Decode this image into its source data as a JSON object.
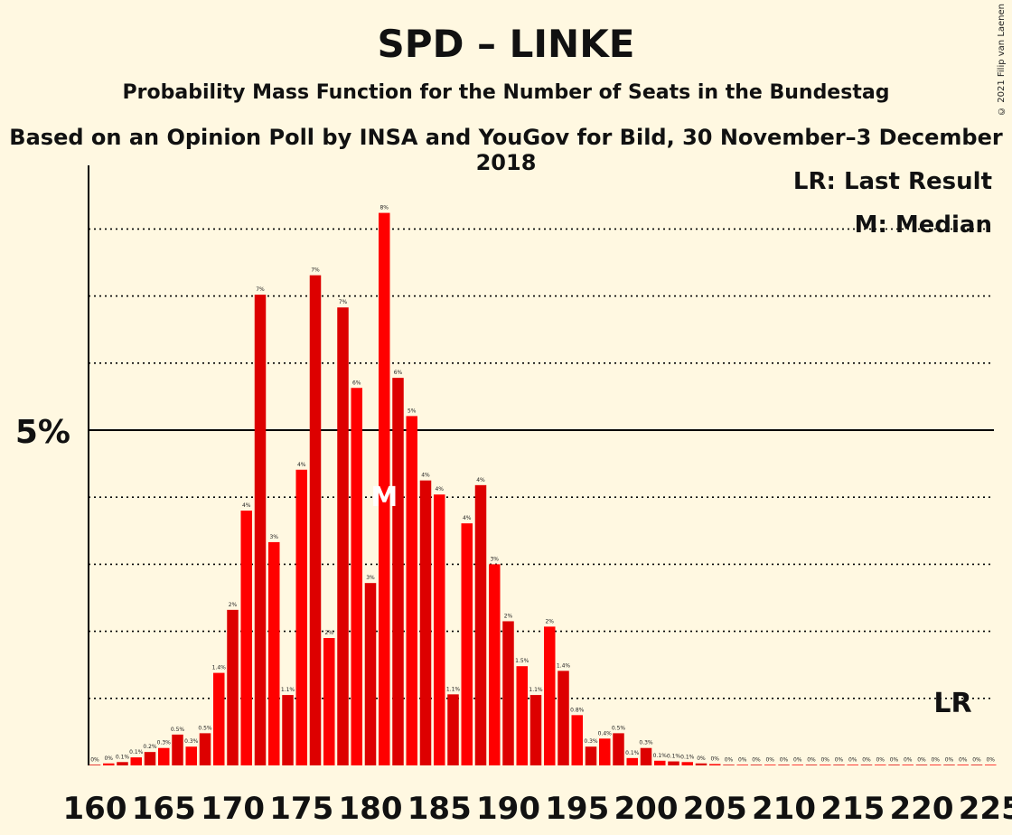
{
  "header": {
    "title": "SPD – LINKE",
    "subtitle1": "Probability Mass Function for the Number of Seats in the Bundestag",
    "subtitle2": "Based on an Opinion Poll by INSA and YouGov for Bild, 30 November–3 December 2018",
    "copyright": "© 2021 Filip van Laenen"
  },
  "legend": {
    "last_result": "LR: Last Result",
    "median": "M: Median"
  },
  "colors": {
    "background": "#fff8e1",
    "bar_dark": "#dd0000",
    "bar_light": "#ff0000",
    "axis": "#000000"
  },
  "chart_data": {
    "type": "bar",
    "x": [
      160,
      161,
      162,
      163,
      164,
      165,
      166,
      167,
      168,
      169,
      170,
      171,
      172,
      173,
      174,
      175,
      176,
      177,
      178,
      179,
      180,
      181,
      182,
      183,
      184,
      185,
      186,
      187,
      188,
      189,
      190,
      191,
      192,
      193,
      194,
      195,
      196,
      197,
      198,
      199,
      200,
      201,
      202,
      203,
      204,
      205,
      206,
      207,
      208,
      209,
      210,
      211,
      212,
      213,
      214,
      215,
      216,
      217,
      218,
      219,
      220,
      221,
      222,
      223,
      224,
      225
    ],
    "values": [
      0.01,
      0.03,
      0.05,
      0.12,
      0.2,
      0.26,
      0.46,
      0.28,
      0.48,
      1.38,
      2.32,
      3.8,
      7.02,
      3.33,
      1.05,
      4.41,
      7.31,
      1.9,
      6.83,
      5.63,
      2.72,
      8.24,
      5.78,
      5.21,
      4.25,
      4.04,
      1.06,
      3.61,
      4.18,
      3.0,
      2.15,
      1.48,
      1.05,
      2.07,
      1.41,
      0.75,
      0.28,
      0.4,
      0.48,
      0.11,
      0.26,
      0.07,
      0.06,
      0.05,
      0.03,
      0.02,
      0.01,
      0.01,
      0.01,
      0.01,
      0.01,
      0.01,
      0.01,
      0.01,
      0.01,
      0.01,
      0.01,
      0.01,
      0.01,
      0.01,
      0.01,
      0.01,
      0.01,
      0.01,
      0.01,
      0.01
    ],
    "labels": [
      "0%",
      "0%",
      "0.1%",
      "0.1%",
      "0.2%",
      "0.3%",
      "0.5%",
      "0.3%",
      "0.5%",
      "1.4%",
      "2%",
      "4%",
      "7%",
      "3%",
      "1.1%",
      "4%",
      "7%",
      "2%",
      "7%",
      "6%",
      "3%",
      "8%",
      "6%",
      "5%",
      "4%",
      "4%",
      "1.1%",
      "4%",
      "4%",
      "3%",
      "2%",
      "1.5%",
      "1.1%",
      "2%",
      "1.4%",
      "0.8%",
      "0.3%",
      "0.4%",
      "0.5%",
      "0.1%",
      "0.3%",
      "0.1%",
      "0.1%",
      "0.1%",
      "0%",
      "0%",
      "0%",
      "0%",
      "0%",
      "0%",
      "0%",
      "0%",
      "0%",
      "0%",
      "0%",
      "0%",
      "0%",
      "0%",
      "0%",
      "0%",
      "0%",
      "0%",
      "0%",
      "0%",
      "0%",
      "0%"
    ],
    "xticks": [
      "160",
      "165",
      "170",
      "175",
      "180",
      "185",
      "190",
      "195",
      "200",
      "205",
      "210",
      "215",
      "220",
      "225"
    ],
    "ytick_label": "5%",
    "threshold": 5,
    "ylim": [
      0,
      9
    ],
    "gridlines": [
      1,
      2,
      3,
      4,
      5,
      6,
      7,
      8
    ],
    "median_seat": 181,
    "median_label": "M",
    "last_result_seat": 222,
    "last_result_label": "LR"
  }
}
